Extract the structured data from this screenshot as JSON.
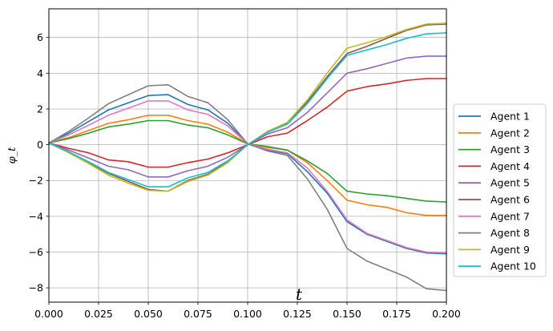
{
  "chart_data": {
    "type": "line",
    "title": "",
    "xlabel": "t",
    "ylabel": "φ_t",
    "xlim": [
      0.0,
      0.2
    ],
    "ylim": [
      -8.8,
      7.6
    ],
    "grid": true,
    "legend_position": "outside-right",
    "x_ticks": [
      0.0,
      0.025,
      0.05,
      0.075,
      0.1,
      0.125,
      0.15,
      0.175,
      0.2
    ],
    "x_tick_labels": [
      "0.000",
      "0.025",
      "0.050",
      "0.075",
      "0.100",
      "0.125",
      "0.150",
      "0.175",
      "0.200"
    ],
    "y_ticks": [
      -8,
      -6,
      -4,
      -2,
      0,
      2,
      4,
      6
    ],
    "y_tick_labels": [
      "−8",
      "−6",
      "−4",
      "−2",
      "0",
      "2",
      "4",
      "6"
    ],
    "x": [
      0.0,
      0.01,
      0.02,
      0.03,
      0.04,
      0.05,
      0.06,
      0.07,
      0.08,
      0.09,
      0.1,
      0.11,
      0.12,
      0.13,
      0.14,
      0.15,
      0.16,
      0.17,
      0.18,
      0.19,
      0.2
    ],
    "series": [
      {
        "name": "Agent 1",
        "color": "#1f77b4",
        "values": [
          0.1,
          0.65,
          1.3,
          1.95,
          2.35,
          2.75,
          2.8,
          2.25,
          1.95,
          1.2,
          0.05,
          -0.3,
          -0.5,
          -1.5,
          -2.7,
          -4.3,
          -5.0,
          -5.4,
          -5.8,
          -6.05,
          -6.1
        ]
      },
      {
        "name": "Agent 2",
        "color": "#ff7f0e",
        "values": [
          0.1,
          0.4,
          0.8,
          1.2,
          1.4,
          1.65,
          1.65,
          1.35,
          1.15,
          0.7,
          0.05,
          -0.15,
          -0.3,
          -1.0,
          -2.0,
          -3.1,
          -3.35,
          -3.5,
          -3.8,
          -3.95,
          -3.95
        ]
      },
      {
        "name": "Agent 3",
        "color": "#2ca02c",
        "values": [
          0.1,
          0.35,
          0.65,
          1.0,
          1.15,
          1.35,
          1.35,
          1.1,
          0.95,
          0.55,
          0.05,
          -0.1,
          -0.3,
          -0.9,
          -1.6,
          -2.6,
          -2.75,
          -2.85,
          -3.0,
          -3.15,
          -3.2
        ]
      },
      {
        "name": "Agent 4",
        "color": "#d62728",
        "values": [
          0.1,
          -0.2,
          -0.45,
          -0.85,
          -0.95,
          -1.25,
          -1.25,
          -1.0,
          -0.8,
          -0.45,
          0.0,
          0.45,
          0.65,
          1.35,
          2.1,
          3.0,
          3.25,
          3.4,
          3.6,
          3.7,
          3.7
        ]
      },
      {
        "name": "Agent 5",
        "color": "#9467bd",
        "values": [
          0.1,
          -0.3,
          -0.75,
          -1.2,
          -1.4,
          -1.8,
          -1.8,
          -1.45,
          -1.2,
          -0.7,
          0.0,
          0.6,
          0.95,
          1.8,
          2.9,
          4.0,
          4.25,
          4.55,
          4.85,
          4.95,
          4.95
        ]
      },
      {
        "name": "Agent 6",
        "color": "#8c564b",
        "values": [
          0.1,
          -0.4,
          -1.0,
          -1.6,
          -2.05,
          -2.5,
          -2.6,
          -2.0,
          -1.65,
          -0.95,
          0.0,
          0.7,
          1.2,
          2.4,
          3.8,
          5.1,
          5.5,
          5.95,
          6.4,
          6.7,
          6.75
        ]
      },
      {
        "name": "Agent 7",
        "color": "#e377c2",
        "values": [
          0.1,
          0.55,
          1.1,
          1.65,
          2.05,
          2.45,
          2.45,
          1.95,
          1.7,
          1.05,
          0.05,
          -0.25,
          -0.45,
          -1.3,
          -2.6,
          -4.2,
          -4.95,
          -5.35,
          -5.75,
          -6.0,
          -6.05
        ]
      },
      {
        "name": "Agent 8",
        "color": "#7f7f7f",
        "values": [
          0.1,
          0.75,
          1.5,
          2.3,
          2.8,
          3.3,
          3.35,
          2.7,
          2.35,
          1.4,
          0.05,
          -0.35,
          -0.6,
          -1.9,
          -3.6,
          -5.8,
          -6.5,
          -6.95,
          -7.4,
          -8.05,
          -8.15
        ]
      },
      {
        "name": "Agent 9",
        "color": "#bcbd22",
        "values": [
          0.1,
          -0.45,
          -1.05,
          -1.7,
          -2.15,
          -2.55,
          -2.6,
          -2.05,
          -1.7,
          -1.0,
          0.0,
          0.75,
          1.25,
          2.5,
          4.0,
          5.4,
          5.7,
          6.05,
          6.45,
          6.75,
          6.8
        ]
      },
      {
        "name": "Agent 10",
        "color": "#17becf",
        "values": [
          0.1,
          -0.4,
          -0.95,
          -1.55,
          -1.95,
          -2.35,
          -2.35,
          -1.85,
          -1.55,
          -0.9,
          0.0,
          0.7,
          1.15,
          2.3,
          3.7,
          5.0,
          5.3,
          5.6,
          5.95,
          6.2,
          6.25
        ]
      }
    ]
  }
}
